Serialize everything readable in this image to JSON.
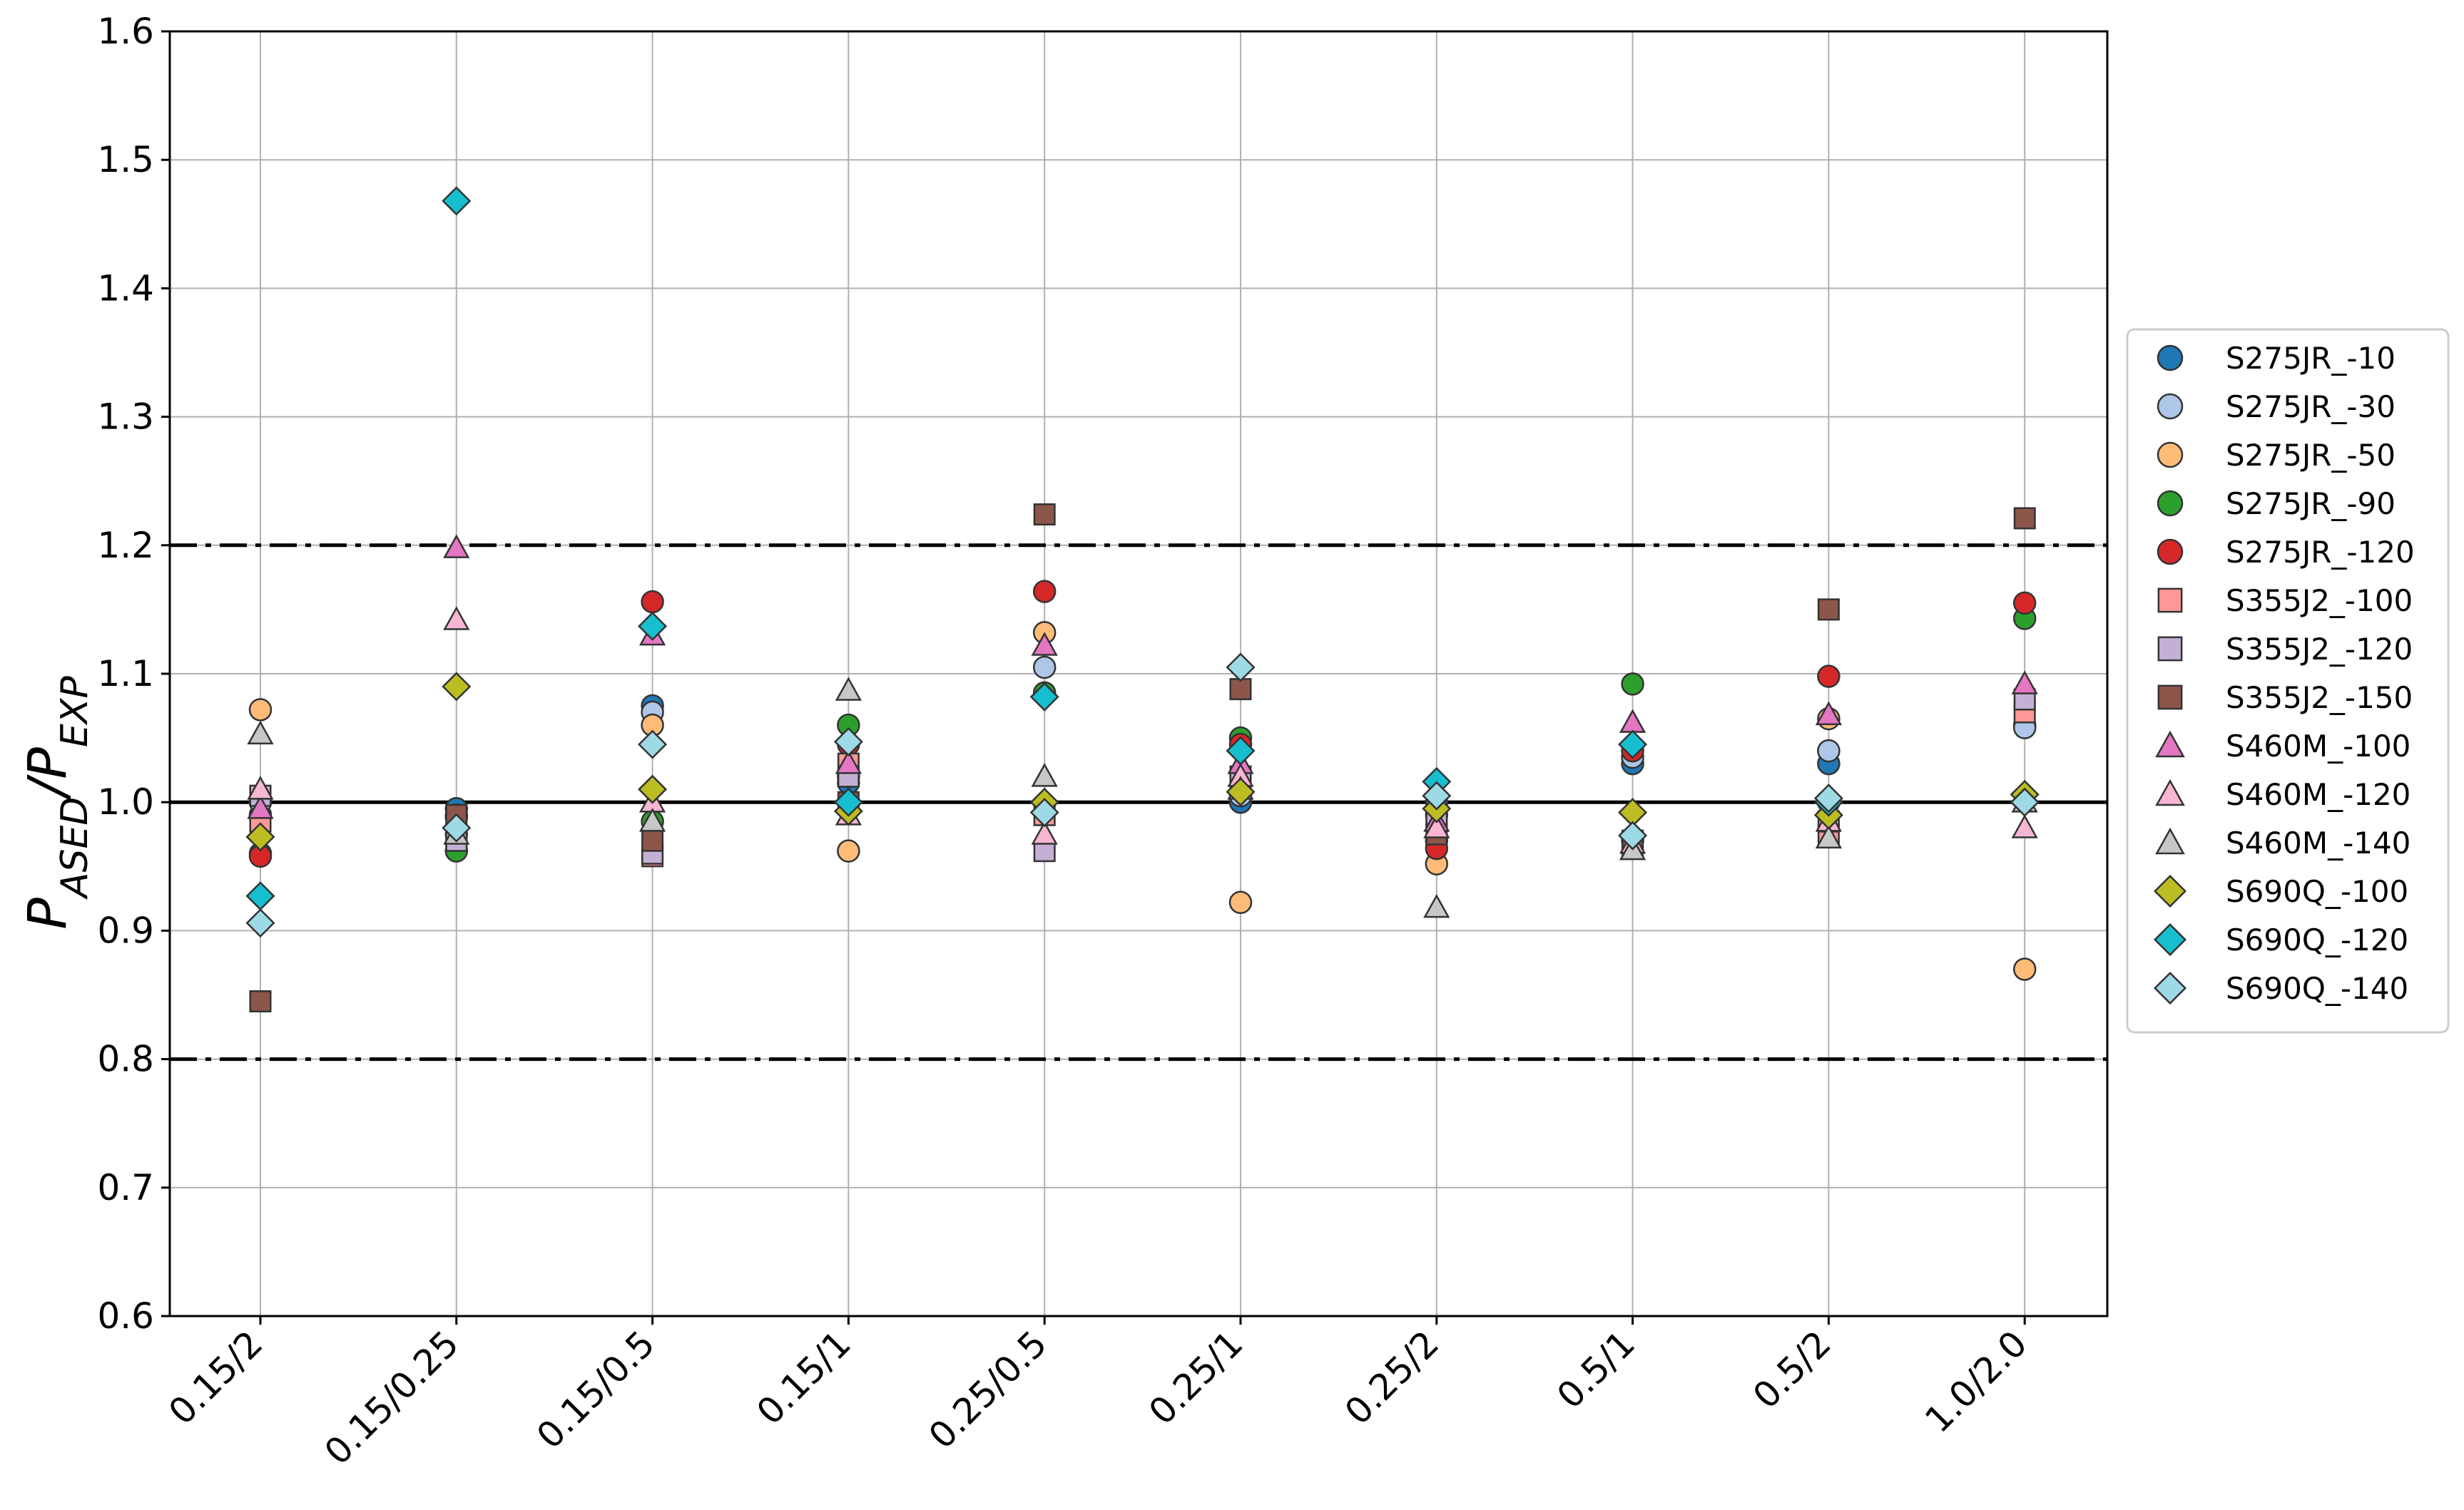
{
  "chart_data": {
    "type": "scatter",
    "title": "",
    "xlabel": "",
    "ylabel": {
      "main": "P",
      "sub1": "ASED",
      "sep": "/P",
      "sub2": "EXP"
    },
    "ylim": [
      0.6,
      1.6
    ],
    "yticks": [
      0.6,
      0.7,
      0.8,
      0.9,
      1.0,
      1.1,
      1.2,
      1.3,
      1.4,
      1.5,
      1.6
    ],
    "ytick_labels": [
      "0.6",
      "0.7",
      "0.8",
      "0.9",
      "1.0",
      "1.1",
      "1.2",
      "1.3",
      "1.4",
      "1.5",
      "1.6"
    ],
    "categories": [
      "0.15/2",
      "0.15/0.25",
      "0.15/0.5",
      "0.15/1",
      "0.25/0.5",
      "0.25/1",
      "0.25/2",
      "0.5/1",
      "0.5/2",
      "1.0/2.0"
    ],
    "reference_lines": [
      {
        "y": 1.0,
        "style": "solid"
      },
      {
        "y": 1.2,
        "style": "dashdot"
      },
      {
        "y": 0.8,
        "style": "dashdot"
      }
    ],
    "grid": true,
    "legend_position": "right",
    "series": [
      {
        "name": "S275JR_-10",
        "marker": "circle",
        "color": "#1f77b4",
        "values": [
          0.99,
          0.995,
          1.075,
          1.015,
          1.085,
          1.0,
          1.0,
          1.03,
          1.03,
          1.06
        ]
      },
      {
        "name": "S275JR_-30",
        "marker": "circle",
        "color": "#aec7e8",
        "values": [
          1.0,
          0.99,
          1.07,
          1.02,
          1.105,
          1.005,
          0.99,
          1.035,
          1.04,
          1.058
        ]
      },
      {
        "name": "S275JR_-50",
        "marker": "circle",
        "color": "#ffbb78",
        "values": [
          1.072,
          0.975,
          1.06,
          0.962,
          1.132,
          0.922,
          0.952,
          0.97,
          1.065,
          0.87
        ]
      },
      {
        "name": "S275JR_-90",
        "marker": "circle",
        "color": "#2ca02c",
        "values": [
          0.96,
          0.962,
          0.985,
          1.06,
          1.085,
          1.05,
          0.97,
          1.092,
          1.0,
          1.143
        ]
      },
      {
        "name": "S275JR_-120",
        "marker": "circle",
        "color": "#d62728",
        "values": [
          0.958,
          0.988,
          1.156,
          1.045,
          1.164,
          1.045,
          0.964,
          1.04,
          1.098,
          1.155
        ]
      },
      {
        "name": "S355J2_-100",
        "marker": "square",
        "color": "#ff9896",
        "values": [
          0.985,
          0.972,
          0.958,
          1.03,
          0.99,
          1.02,
          0.99,
          0.97,
          0.975,
          1.07
        ]
      },
      {
        "name": "S355J2_-120",
        "marker": "square",
        "color": "#c5b0d5",
        "values": [
          1.005,
          0.97,
          0.96,
          1.02,
          0.962,
          1.015,
          0.985,
          0.965,
          0.985,
          1.08
        ]
      },
      {
        "name": "S355J2_-150",
        "marker": "square",
        "color": "#8c564b",
        "values": [
          0.845,
          0.99,
          0.97,
          1.0,
          1.224,
          1.088,
          0.975,
          0.97,
          1.15,
          1.221
        ]
      },
      {
        "name": "S460M_-100",
        "marker": "triangle",
        "color": "#e377c2",
        "values": [
          0.995,
          1.198,
          1.13,
          1.03,
          1.122,
          1.03,
          0.985,
          1.062,
          1.068,
          1.092
        ]
      },
      {
        "name": "S460M_-120",
        "marker": "triangle",
        "color": "#f7b6d2",
        "values": [
          1.01,
          1.142,
          1.0,
          0.99,
          0.975,
          1.02,
          0.98,
          0.968,
          0.985,
          0.98
        ]
      },
      {
        "name": "S460M_-140",
        "marker": "triangle",
        "color": "#c7c7c7",
        "values": [
          1.053,
          0.975,
          0.985,
          1.087,
          1.02,
          1.01,
          0.918,
          0.963,
          0.972,
          1.0
        ]
      },
      {
        "name": "S690Q_-100",
        "marker": "diamond",
        "color": "#bcbd22",
        "values": [
          0.973,
          1.09,
          1.01,
          0.993,
          1.0,
          1.008,
          0.995,
          0.992,
          0.99,
          1.006
        ]
      },
      {
        "name": "S690Q_-120",
        "marker": "diamond",
        "color": "#17becf",
        "values": [
          0.927,
          1.468,
          1.137,
          1.0,
          1.082,
          1.04,
          1.016,
          1.045,
          1.0,
          1.0
        ]
      },
      {
        "name": "S690Q_-140",
        "marker": "diamond",
        "color": "#9edae5",
        "values": [
          0.906,
          0.98,
          1.045,
          1.047,
          0.992,
          1.105,
          1.005,
          0.974,
          1.003,
          1.0
        ]
      }
    ]
  }
}
